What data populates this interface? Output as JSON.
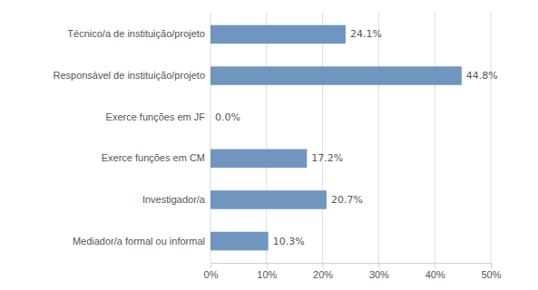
{
  "chart_data": {
    "type": "bar",
    "orientation": "horizontal",
    "categories": [
      "Técnico/a de instituição/projeto",
      "Responsável de instituição/projeto",
      "Exerce funções em JF",
      "Exerce funções em CM",
      "Investigador/a",
      "Mediador/a formal ou informal"
    ],
    "values": [
      24.1,
      44.8,
      0.0,
      17.2,
      20.7,
      10.3
    ],
    "value_labels": [
      "24.1%",
      "44.8%",
      "0.0%",
      "17.2%",
      "20.7%",
      "10.3%"
    ],
    "data_labels": true,
    "color": "#7096c0",
    "xlim": [
      0,
      50
    ],
    "xticks": [
      {
        "value": 0,
        "label": "0%"
      },
      {
        "value": 10,
        "label": "10%"
      },
      {
        "value": 20,
        "label": "20%"
      },
      {
        "value": 30,
        "label": "30%"
      },
      {
        "value": 40,
        "label": "40%"
      },
      {
        "value": 50,
        "label": "50%"
      }
    ],
    "grid": true
  }
}
